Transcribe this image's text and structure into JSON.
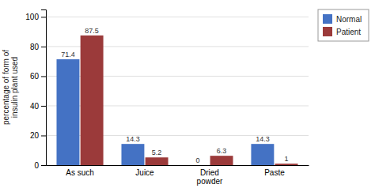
{
  "chart_data": {
    "type": "bar",
    "categories": [
      "As such",
      "Juice",
      "Dried\npowder",
      "Paste"
    ],
    "series": [
      {
        "name": "Normal",
        "color": "#4472C4",
        "values": [
          71.4,
          14.3,
          0,
          14.3
        ]
      },
      {
        "name": "Patient",
        "color": "#9B3A3A",
        "values": [
          87.5,
          5.2,
          6.3,
          1
        ]
      }
    ],
    "ylabel": "percentage of form of\ninsulin plant used",
    "ylim": [
      0,
      105
    ],
    "yticks": [
      0,
      20,
      40,
      60,
      80,
      100
    ],
    "grid": true,
    "legend": "right",
    "data_labels": true
  }
}
